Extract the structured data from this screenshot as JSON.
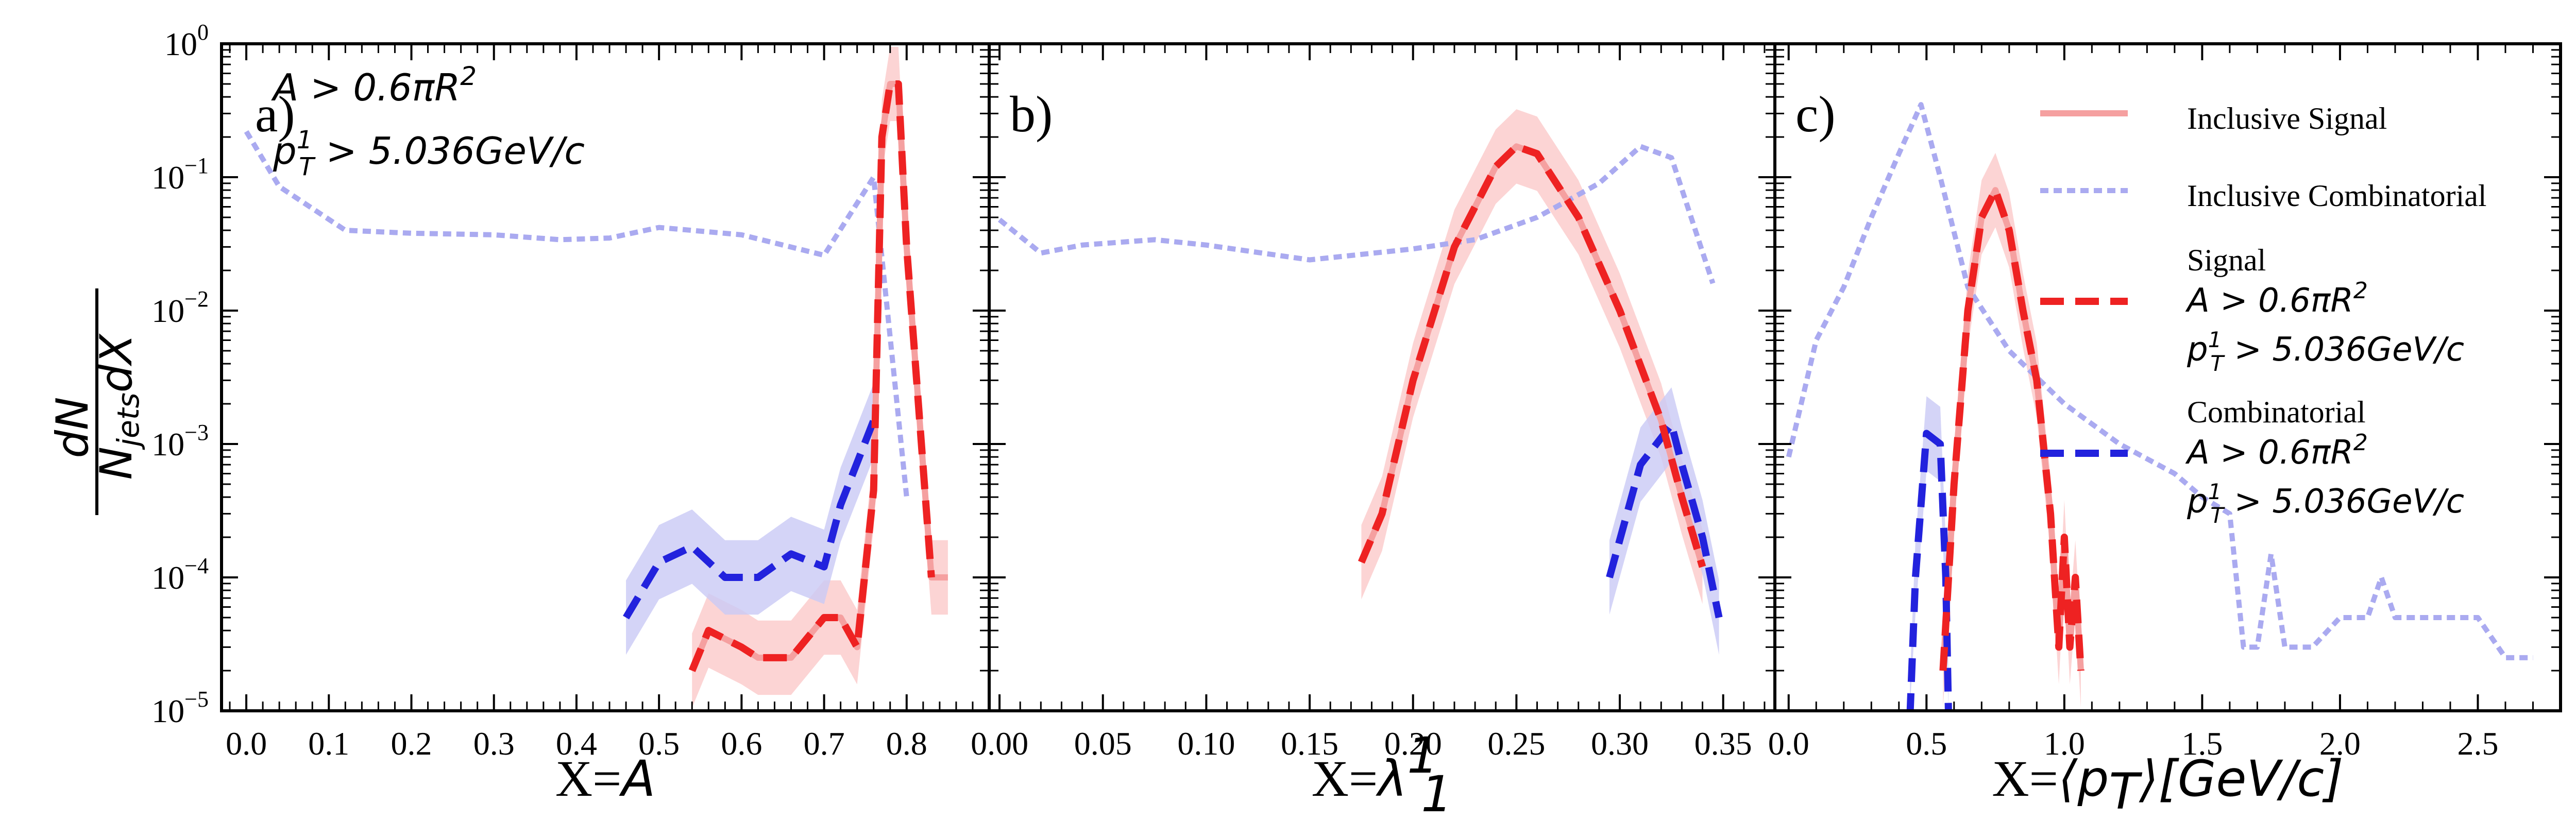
{
  "y_axis": {
    "label_num": "dN",
    "label_den": "N",
    "label_den_sub": "jets",
    "label_den_tail": "dX",
    "scale": "log",
    "ylim": [
      1e-05,
      1
    ],
    "tick_labels": [
      {
        "base": "10",
        "exp": "0",
        "value": 1
      },
      {
        "base": "10",
        "exp": "−1",
        "value": 0.1
      },
      {
        "base": "10",
        "exp": "−2",
        "value": 0.01
      },
      {
        "base": "10",
        "exp": "−3",
        "value": 0.001
      },
      {
        "base": "10",
        "exp": "−4",
        "value": 0.0001
      },
      {
        "base": "10",
        "exp": "−5",
        "value": 1e-05
      }
    ]
  },
  "annotation": {
    "line1": "A > 0.6πR",
    "line1_sup": "2",
    "line2_p": "p",
    "line2_sup": "1",
    "line2_sub": "T",
    "line2_rest": " > 5.036GeV/c"
  },
  "legend": {
    "inclusive_signal": "Inclusive Signal",
    "inclusive_combinatorial": "Inclusive Combinatorial",
    "signal": "Signal",
    "combinatorial": "Combinatorial",
    "cut1": "A > 0.6πR",
    "cut1_sup": "2",
    "cut2_p": "p",
    "cut2_sup": "1",
    "cut2_sub": "T",
    "cut2_rest": " > 5.036GeV/c"
  },
  "colors": {
    "inclusive_signal": "#f5a0a0",
    "inclusive_combinatorial": "#aaaaf0",
    "signal": "#ee2222",
    "combinatorial": "#2222dd",
    "signal_band": "#fbc9c9",
    "combinatorial_band": "#c9c9f5"
  },
  "chart_data": [
    {
      "type": "line",
      "panel": "a)",
      "xlabel_prefix": "X=",
      "xlabel_var": "A",
      "xlim": [
        -0.03,
        0.9
      ],
      "xticks": [
        "0.0",
        "0.1",
        "0.2",
        "0.3",
        "0.4",
        "0.5",
        "0.6",
        "0.7",
        "0.8"
      ],
      "xtick_values": [
        0.0,
        0.1,
        0.2,
        0.3,
        0.4,
        0.5,
        0.6,
        0.7,
        0.8
      ],
      "series": [
        {
          "name": "Inclusive Combinatorial",
          "x": [
            0.0,
            0.04,
            0.12,
            0.2,
            0.3,
            0.38,
            0.44,
            0.5,
            0.6,
            0.7,
            0.76,
            0.8
          ],
          "y": [
            0.22,
            0.085,
            0.04,
            0.038,
            0.037,
            0.034,
            0.035,
            0.042,
            0.037,
            0.026,
            0.1,
            0.0004
          ]
        },
        {
          "name": "Inclusive Signal",
          "x": [
            0.54,
            0.56,
            0.6,
            0.62,
            0.66,
            0.7,
            0.72,
            0.74,
            0.76,
            0.77,
            0.78,
            0.79,
            0.8,
            0.83,
            0.85
          ],
          "y": [
            2e-05,
            4e-05,
            3e-05,
            2.5e-05,
            2.5e-05,
            5e-05,
            5e-05,
            3e-05,
            0.00045,
            0.2,
            0.5,
            0.5,
            0.03,
            0.0001,
            0.0001
          ]
        },
        {
          "name": "Signal",
          "x": [
            0.54,
            0.56,
            0.6,
            0.62,
            0.66,
            0.7,
            0.72,
            0.74,
            0.76,
            0.77,
            0.78,
            0.79,
            0.8,
            0.83
          ],
          "y": [
            2e-05,
            4e-05,
            3e-05,
            2.5e-05,
            2.5e-05,
            5e-05,
            5e-05,
            3e-05,
            0.00045,
            0.2,
            0.5,
            0.5,
            0.03,
            0.0001
          ]
        },
        {
          "name": "Combinatorial",
          "x": [
            0.46,
            0.5,
            0.54,
            0.58,
            0.62,
            0.66,
            0.7,
            0.72,
            0.76
          ],
          "y": [
            5e-05,
            0.00013,
            0.00017,
            0.0001,
            0.0001,
            0.00015,
            0.00012,
            0.00035,
            0.0015
          ]
        }
      ]
    },
    {
      "type": "line",
      "panel": "b)",
      "xlabel_prefix": "X=",
      "xlabel_var": "λ",
      "xlabel_sub": "1",
      "xlabel_sup": "1",
      "xlim": [
        -0.005,
        0.375
      ],
      "xticks": [
        "0.00",
        "0.05",
        "0.10",
        "0.15",
        "0.20",
        "0.25",
        "0.30",
        "0.35"
      ],
      "xtick_values": [
        0.0,
        0.05,
        0.1,
        0.15,
        0.2,
        0.25,
        0.3,
        0.35
      ],
      "series": [
        {
          "name": "Inclusive Combinatorial",
          "x": [
            0.0,
            0.02,
            0.04,
            0.075,
            0.1,
            0.15,
            0.2,
            0.23,
            0.26,
            0.29,
            0.31,
            0.325,
            0.345
          ],
          "y": [
            0.048,
            0.027,
            0.031,
            0.034,
            0.031,
            0.024,
            0.029,
            0.034,
            0.05,
            0.09,
            0.17,
            0.14,
            0.016
          ]
        },
        {
          "name": "Inclusive Signal",
          "x": [
            0.175,
            0.185,
            0.2,
            0.22,
            0.24,
            0.25,
            0.26,
            0.28,
            0.3,
            0.32,
            0.33,
            0.34
          ],
          "y": [
            0.00013,
            0.0003,
            0.003,
            0.03,
            0.12,
            0.17,
            0.15,
            0.05,
            0.01,
            0.0015,
            0.0004,
            0.00012
          ]
        },
        {
          "name": "Signal",
          "x": [
            0.175,
            0.185,
            0.2,
            0.22,
            0.24,
            0.25,
            0.26,
            0.28,
            0.3,
            0.32,
            0.33,
            0.34
          ],
          "y": [
            0.00013,
            0.0003,
            0.003,
            0.03,
            0.12,
            0.17,
            0.15,
            0.05,
            0.01,
            0.0015,
            0.0004,
            0.00012
          ]
        },
        {
          "name": "Combinatorial",
          "x": [
            0.295,
            0.31,
            0.325,
            0.33,
            0.34,
            0.348
          ],
          "y": [
            0.0001,
            0.0007,
            0.0014,
            0.0007,
            0.0002,
            5e-05
          ]
        }
      ]
    },
    {
      "type": "line",
      "panel": "c)",
      "xlabel_prefix": "X=",
      "xlabel_var": "⟨p",
      "xlabel_sub": "T",
      "xlabel_tail": "⟩[GeV/c]",
      "xlim": [
        -0.05,
        2.8
      ],
      "xticks": [
        "0.0",
        "0.5",
        "1.0",
        "1.5",
        "2.0",
        "2.5"
      ],
      "xtick_values": [
        0.0,
        0.5,
        1.0,
        1.5,
        2.0,
        2.5
      ],
      "series": [
        {
          "name": "Inclusive Combinatorial",
          "x": [
            0.0,
            0.1,
            0.2,
            0.3,
            0.4,
            0.48,
            0.55,
            0.65,
            0.8,
            1.0,
            1.2,
            1.4,
            1.5,
            1.6,
            1.65,
            1.7,
            1.75,
            1.8,
            1.85,
            1.9,
            2.0,
            2.1,
            2.15,
            2.2,
            2.3,
            2.5,
            2.6,
            2.7
          ],
          "y": [
            0.0008,
            0.006,
            0.015,
            0.05,
            0.15,
            0.35,
            0.1,
            0.015,
            0.005,
            0.002,
            0.001,
            0.0006,
            0.0004,
            0.0003,
            3e-05,
            3e-05,
            0.00015,
            3e-05,
            3e-05,
            3e-05,
            5e-05,
            5e-05,
            0.0001,
            5e-05,
            5e-05,
            5e-05,
            2.5e-05,
            2.5e-05
          ]
        },
        {
          "name": "Inclusive Signal",
          "x": [
            0.56,
            0.6,
            0.65,
            0.7,
            0.75,
            0.8,
            0.85,
            0.9,
            0.95,
            0.98,
            1.0,
            1.02,
            1.04,
            1.06
          ],
          "y": [
            2e-05,
            0.0005,
            0.01,
            0.05,
            0.08,
            0.04,
            0.01,
            0.003,
            0.0003,
            3e-05,
            0.0002,
            3e-05,
            0.0001,
            2e-05
          ]
        },
        {
          "name": "Signal",
          "x": [
            0.56,
            0.6,
            0.65,
            0.7,
            0.75,
            0.8,
            0.85,
            0.9,
            0.95,
            0.98,
            1.0,
            1.02,
            1.04,
            1.06
          ],
          "y": [
            2e-05,
            0.0005,
            0.01,
            0.05,
            0.08,
            0.04,
            0.01,
            0.003,
            0.0003,
            3e-05,
            0.0002,
            3e-05,
            0.0001,
            2e-05
          ]
        },
        {
          "name": "Combinatorial",
          "x": [
            0.44,
            0.46,
            0.5,
            0.55,
            0.57,
            0.58
          ],
          "y": [
            9e-06,
            0.0001,
            0.0012,
            0.001,
            0.0001,
            9e-06
          ]
        }
      ]
    }
  ]
}
